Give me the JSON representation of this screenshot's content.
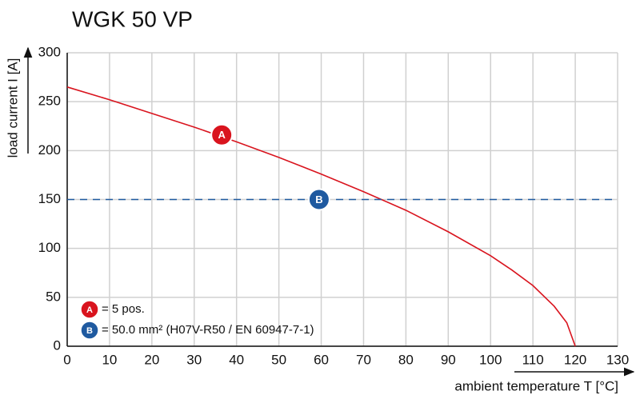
{
  "chart_data": {
    "type": "line",
    "title": "WGK 50 VP",
    "xlabel": "ambient temperature T [°C]",
    "ylabel": "load current I [A]",
    "xlim": [
      0,
      130
    ],
    "xticks": [
      0,
      10,
      20,
      30,
      40,
      50,
      60,
      70,
      80,
      90,
      100,
      110,
      120,
      130
    ],
    "ylim": [
      0,
      300
    ],
    "yticks": [
      0,
      50,
      100,
      150,
      200,
      250,
      300
    ],
    "grid": true,
    "series": [
      {
        "name": "A",
        "legend": "= 5 pos.",
        "color": "#d9141e",
        "dashed": false,
        "x": [
          0,
          10,
          20,
          30,
          40,
          50,
          60,
          70,
          80,
          90,
          100,
          105,
          110,
          115,
          118,
          120
        ],
        "values": [
          265,
          252,
          238,
          224,
          209,
          193,
          176,
          158,
          139,
          117,
          92.5,
          78,
          62,
          41,
          24,
          0
        ],
        "label_x": 36.5,
        "label_y": 216
      },
      {
        "name": "B",
        "legend": "= 50.0 mm² (H07V-R50 / EN 60947-7-1)",
        "color": "#1f5aa0",
        "dashed": true,
        "x": [
          0,
          130
        ],
        "values": [
          150,
          150
        ],
        "label_x": 59.5,
        "label_y": 150
      }
    ]
  }
}
